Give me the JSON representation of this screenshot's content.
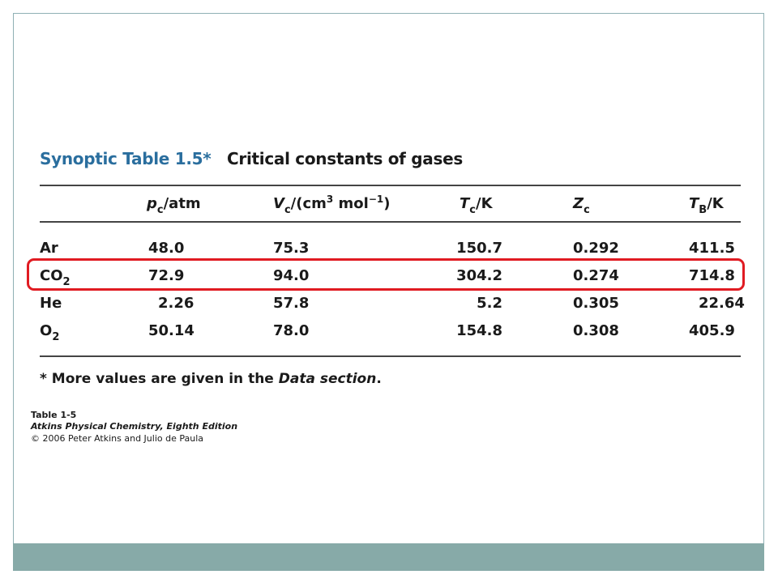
{
  "title": {
    "prefix": "Synoptic Table 1.5*",
    "text": "Critical constants of gases"
  },
  "columns": {
    "pc": {
      "symbol": "p",
      "sub": "c",
      "unit": "/atm"
    },
    "vc": {
      "symbol": "V",
      "sub": "c",
      "unit_a": "/(cm",
      "sup1": "3",
      "unit_b": " mol",
      "sup2": "−1",
      "unit_c": ")"
    },
    "tc": {
      "symbol": "T",
      "sub": "c",
      "unit": "/K"
    },
    "zc": {
      "symbol": "Z",
      "sub": "c"
    },
    "tb": {
      "symbol": "T",
      "sub": "B",
      "unit": "/K"
    }
  },
  "rows": [
    {
      "gas": "Ar",
      "gas_sub": "",
      "pc": "48.0",
      "vc": "75.3",
      "tc": "150.7",
      "zc": "0.292",
      "tb": "411.5"
    },
    {
      "gas": "CO",
      "gas_sub": "2",
      "pc": "72.9",
      "vc": "94.0",
      "tc": "304.2",
      "zc": "0.274",
      "tb": "714.8"
    },
    {
      "gas": "He",
      "gas_sub": "",
      "pc": "2.26",
      "vc": "57.8",
      "tc": "5.2",
      "zc": "0.305",
      "tb": "22.64"
    },
    {
      "gas": "O",
      "gas_sub": "2",
      "pc": "50.14",
      "vc": "78.0",
      "tc": "154.8",
      "zc": "0.308",
      "tb": "405.9"
    }
  ],
  "footnote": {
    "prefix": "* More values are given in the ",
    "emph": "Data section",
    "suffix": "."
  },
  "credits": {
    "line1": "Table 1-5",
    "line2": "Atkins Physical Chemistry, Eighth Edition",
    "line3": "© 2006 Peter Atkins and Julio de Paula"
  },
  "colors": {
    "title_accent": "#2a6e9e",
    "highlight": "#e01b22",
    "footer_band": "#87aaa8",
    "frame": "#8fb0b4"
  }
}
